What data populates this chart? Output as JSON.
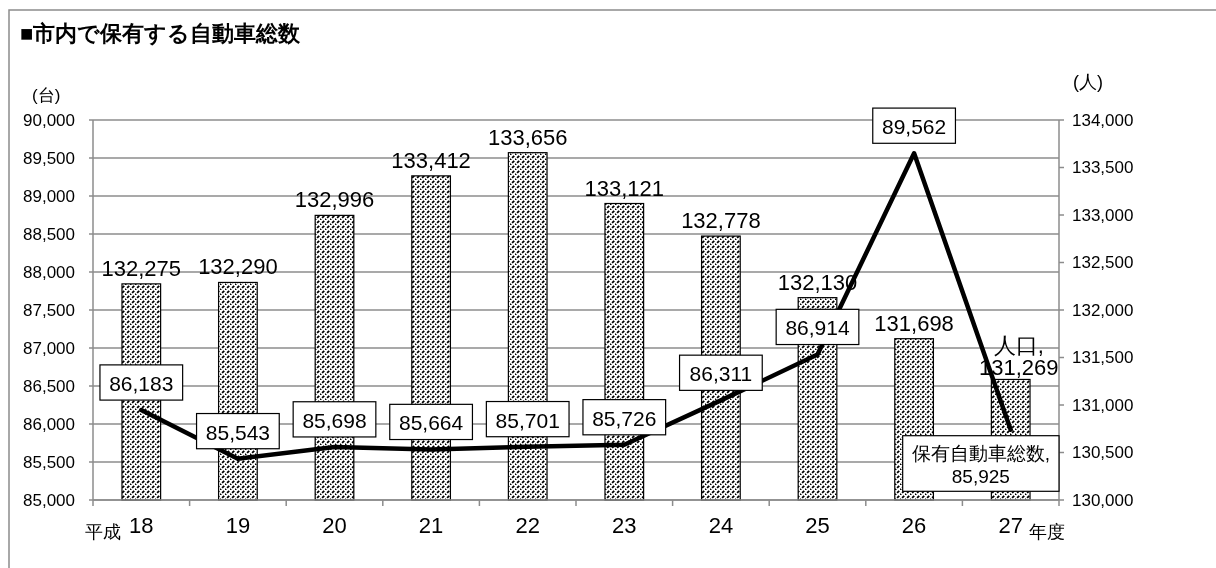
{
  "chart_data": {
    "type": "bar",
    "title": "■市内で保有する自動車総数",
    "ylabel": "(台)",
    "y2label": "(人)",
    "categories": [
      "18",
      "19",
      "20",
      "21",
      "22",
      "23",
      "24",
      "25",
      "26",
      "27"
    ],
    "annotations": [
      "平成",
      "年度"
    ],
    "series": [
      {
        "name": "人口,",
        "axis": "y2",
        "color": "#000000",
        "values": [
          132275,
          132290,
          132996,
          133412,
          133656,
          133121,
          132778,
          132130,
          131698,
          131269
        ],
        "value_labels": [
          "132,275",
          "132,290",
          "132,996",
          "133,412",
          "133,656",
          "133,121",
          "132,778",
          "132,130",
          "131,698",
          "131,269"
        ]
      },
      {
        "name": "保有自動車総数,",
        "type": "line",
        "axis": "y",
        "color": "#000000",
        "values": [
          86183,
          85543,
          85698,
          85664,
          85701,
          85726,
          86311,
          86914,
          89562,
          85925
        ],
        "value_labels": [
          "86,183",
          "85,543",
          "85,698",
          "85,664",
          "85,701",
          "85,726",
          "86,311",
          "86,914",
          "89,562",
          "85,925"
        ]
      }
    ],
    "ylim": [
      85000,
      90000
    ],
    "yticks": [
      {
        "value": 85000,
        "label": "85,000"
      },
      {
        "value": 85500,
        "label": "85,500"
      },
      {
        "value": 86000,
        "label": "86,000"
      },
      {
        "value": 86500,
        "label": "86,500"
      },
      {
        "value": 87000,
        "label": "87,000"
      },
      {
        "value": 87500,
        "label": "87,500"
      },
      {
        "value": 88000,
        "label": "88,000"
      },
      {
        "value": 88500,
        "label": "88,500"
      },
      {
        "value": 89000,
        "label": "89,000"
      },
      {
        "value": 89500,
        "label": "89,500"
      },
      {
        "value": 90000,
        "label": "90,000"
      }
    ],
    "y2lim": [
      130000,
      134000
    ],
    "y2ticks": [
      {
        "value": 130000,
        "label": "130,000"
      },
      {
        "value": 130500,
        "label": "130,500"
      },
      {
        "value": 131000,
        "label": "131,000"
      },
      {
        "value": 131500,
        "label": "131,500"
      },
      {
        "value": 132000,
        "label": "132,000"
      },
      {
        "value": 132500,
        "label": "132,500"
      },
      {
        "value": 133000,
        "label": "133,000"
      },
      {
        "value": 133500,
        "label": "133,500"
      },
      {
        "value": 134000,
        "label": "134,000"
      }
    ],
    "grid": "y",
    "legend": false
  }
}
